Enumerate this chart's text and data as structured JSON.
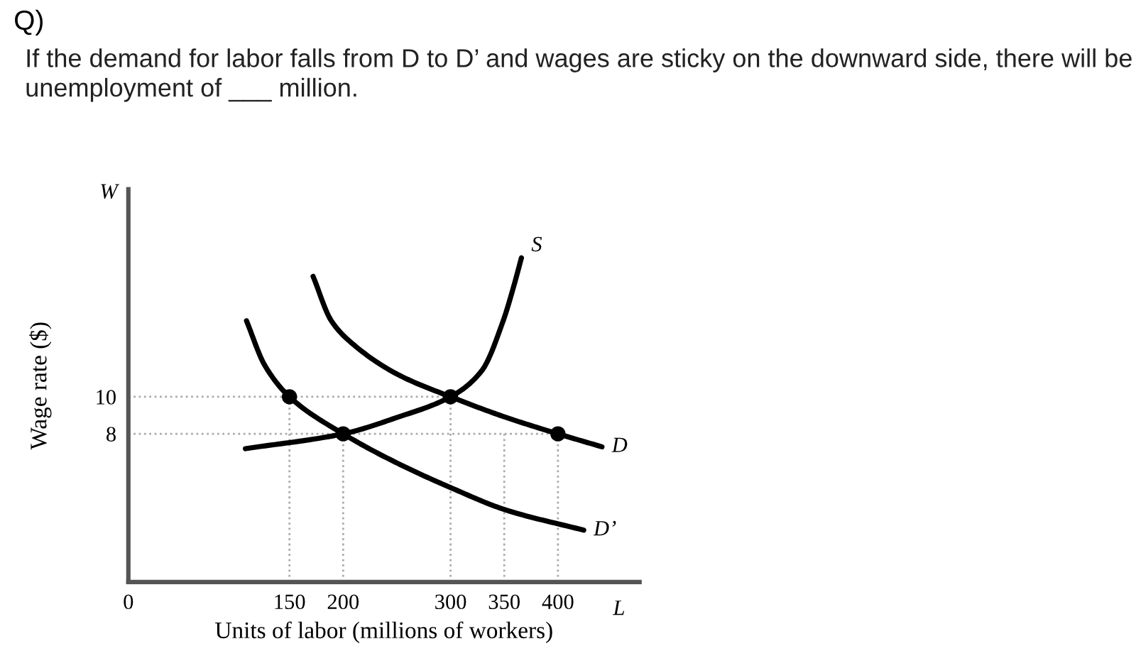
{
  "chart_data": {
    "type": "line",
    "title": "Q)",
    "subtitle": "If the demand for labor falls from D to D’ and wages are sticky on the downward side, there will be unemployment of ___ million.",
    "xlabel": "Units of labor (millions of workers)",
    "ylabel": "Wage rate ($)",
    "xlim": [
      0,
      476
    ],
    "ylim": [
      0,
      21.2
    ],
    "xticks": [
      0,
      150,
      200,
      300,
      350,
      400
    ],
    "yticks": [
      8,
      10
    ],
    "grid": false,
    "legend": false,
    "line_style": "solid",
    "annotations": [
      "W",
      "L"
    ],
    "series": [
      {
        "color": "#aaaaaa",
        "line_style": "dotted",
        "x": [
          0,
          300
        ],
        "values": [
          10,
          10
        ]
      },
      {
        "color": "#aaaaaa",
        "line_style": "dotted",
        "x": [
          0,
          400
        ],
        "values": [
          8,
          8
        ]
      },
      {
        "color": "#aaaaaa",
        "line_style": "dotted",
        "x": [
          150,
          150
        ],
        "values": [
          0,
          10
        ]
      },
      {
        "color": "#aaaaaa",
        "line_style": "dotted",
        "x": [
          200,
          200
        ],
        "values": [
          0,
          8
        ]
      },
      {
        "color": "#aaaaaa",
        "line_style": "dotted",
        "x": [
          300,
          300
        ],
        "values": [
          0,
          10
        ]
      },
      {
        "color": "#aaaaaa",
        "line_style": "dotted",
        "x": [
          350,
          350
        ],
        "values": [
          0,
          8
        ]
      },
      {
        "color": "#aaaaaa",
        "line_style": "dotted",
        "x": [
          400,
          400
        ],
        "values": [
          0,
          8
        ]
      },
      {
        "name": "S",
        "color": "#000000",
        "x": [
          109,
          200,
          251,
          300,
          329,
          349,
          359,
          366
        ],
        "values": [
          7.2,
          8,
          8.9,
          10,
          11.4,
          14.1,
          16,
          17.5
        ]
      },
      {
        "name": "D",
        "color": "#000000",
        "x": [
          172,
          189,
          210,
          251,
          300,
          351,
          400,
          441
        ],
        "values": [
          16.5,
          14.1,
          12.8,
          11.2,
          10,
          8.9,
          8,
          7.3
        ]
      },
      {
        "name": "D’",
        "color": "#000000",
        "x": [
          110,
          127,
          150,
          200,
          251,
          300,
          351,
          424
        ],
        "values": [
          14.1,
          11.7,
          10,
          8,
          6.4,
          5.1,
          3.9,
          2.8
        ]
      },
      {
        "type": "scatter",
        "color": "#000000",
        "marker": "circle",
        "x": [
          150,
          200,
          300,
          400
        ],
        "values": [
          10,
          8,
          10,
          8
        ]
      }
    ]
  }
}
